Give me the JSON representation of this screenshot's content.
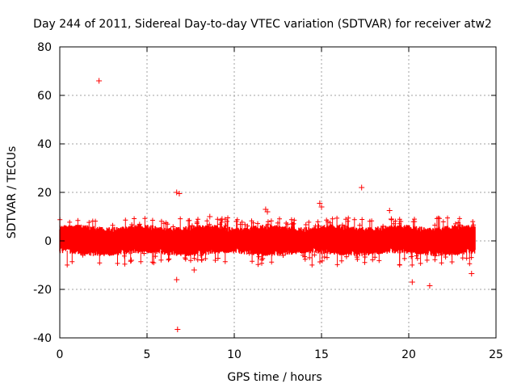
{
  "chart_data": {
    "type": "scatter",
    "title": "Day 244 of 2011, Sidereal Day-to-day VTEC variation (SDTVAR) for receiver atw2",
    "xlabel": "GPS time / hours",
    "ylabel": "SDTVAR / TECUs",
    "xlim": [
      0,
      25
    ],
    "ylim": [
      -40,
      80
    ],
    "xticks": [
      0,
      5,
      10,
      15,
      20,
      25
    ],
    "yticks": [
      -40,
      -20,
      0,
      20,
      40,
      60,
      80
    ],
    "grid": true,
    "marker": "+",
    "series_color": "#ff0000",
    "band": {
      "x_range": [
        0,
        23.8
      ],
      "typical_low": -4,
      "typical_high": 4.5,
      "description": "dense band of SDTVAR values around 0 TECU"
    },
    "outliers": [
      {
        "x": 2.25,
        "y": 66
      },
      {
        "x": 6.75,
        "y": -36.5
      },
      {
        "x": 6.7,
        "y": 20
      },
      {
        "x": 6.85,
        "y": 19.5
      },
      {
        "x": 17.3,
        "y": 22
      },
      {
        "x": 21.2,
        "y": -18.5
      },
      {
        "x": 23.6,
        "y": -13.5
      },
      {
        "x": 8.6,
        "y": 10
      },
      {
        "x": 9.3,
        "y": 9
      },
      {
        "x": 11.8,
        "y": 13
      },
      {
        "x": 11.9,
        "y": 12
      },
      {
        "x": 14.9,
        "y": 15.5
      },
      {
        "x": 15.0,
        "y": 14
      },
      {
        "x": 18.9,
        "y": 12.5
      },
      {
        "x": 20.2,
        "y": -17
      },
      {
        "x": 6.7,
        "y": -16
      },
      {
        "x": 7.7,
        "y": -12
      },
      {
        "x": 4.1,
        "y": -8
      },
      {
        "x": 19.0,
        "y": 9
      }
    ]
  }
}
